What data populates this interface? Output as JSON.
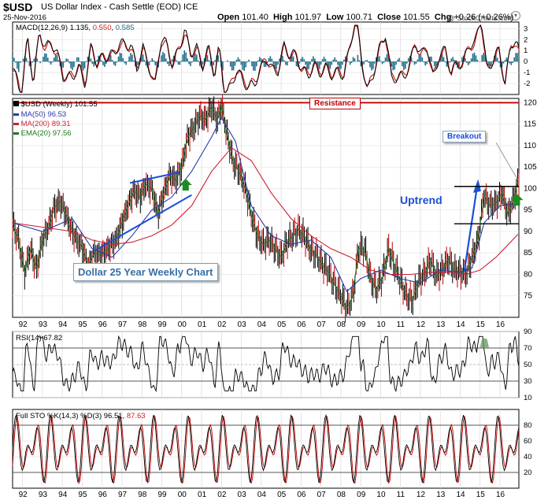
{
  "header": {
    "symbol": "$USD",
    "name": "US Dollar Index - Cash Settle (EOD) ICE",
    "date": "25-Nov-2016",
    "watermark": "@ StockCharts.com",
    "ohlc": {
      "open_label": "Open",
      "open": "101.40",
      "high_label": "High",
      "high": "101.97",
      "low_label": "Low",
      "low": "100.71",
      "close_label": "Close",
      "close": "101.55",
      "chg_label": "Chg",
      "chg": "+0.26 (+0.26%)"
    }
  },
  "colors": {
    "price": "#000000",
    "ma50": "#2a3aa8",
    "ma200": "#cc1f2f",
    "ema20": "#1c7a1c",
    "macd_line": "#000000",
    "macd_signal": "#d42020",
    "histogram": "#1f6f8b",
    "resistance": "#c00000",
    "annotation_blue": "#1a4fd6",
    "arrow_green": "#1f8a1f",
    "rsi_overbought_fill": "#6a9a6a"
  },
  "chart_data": [
    {
      "type": "line",
      "panel": "macd",
      "legend": {
        "label": "MACD(12,26,9)",
        "macd": "1.135",
        "signal": "0.550",
        "histogram": "0.585"
      },
      "ylim": [
        -3,
        3.6
      ],
      "yticks": [
        "3",
        "2",
        "1",
        "0",
        "-1",
        "-2"
      ],
      "grid": true
    },
    {
      "type": "line",
      "panel": "price",
      "legend": [
        {
          "label": "$USD (Weekly) 101.55",
          "color_key": "price"
        },
        {
          "label": "MA(50) 96.53",
          "color_key": "ma50"
        },
        {
          "label": "MA(200) 89.31",
          "color_key": "ma200"
        },
        {
          "label": "EMA(20) 97.56",
          "color_key": "ema20"
        }
      ],
      "ylim": [
        70,
        121
      ],
      "yticks": [
        "120",
        "115",
        "110",
        "105",
        "100",
        "95",
        "90",
        "85",
        "80",
        "75"
      ],
      "xticks": [
        "92",
        "93",
        "94",
        "95",
        "96",
        "97",
        "98",
        "99",
        "00",
        "01",
        "02",
        "03",
        "04",
        "05",
        "06",
        "07",
        "08",
        "09",
        "10",
        "11",
        "12",
        "13",
        "14",
        "15",
        "16"
      ],
      "x_range": [
        1991.5,
        2016.95
      ],
      "resistance_level": 120,
      "series": [
        {
          "name": "$USD (Weekly)",
          "x": [
            1991.5,
            1991.8,
            1992.1,
            1992.4,
            1992.7,
            1993.0,
            1993.3,
            1993.6,
            1993.9,
            1994.1,
            1994.4,
            1994.7,
            1995.0,
            1995.3,
            1995.6,
            1995.9,
            1996.3,
            1996.7,
            1997.0,
            1997.3,
            1997.6,
            1997.9,
            1998.2,
            1998.5,
            1998.8,
            1999.1,
            1999.4,
            1999.7,
            2000.0,
            2000.3,
            2000.6,
            2000.9,
            2001.2,
            2001.5,
            2001.8,
            2002.0,
            2002.3,
            2002.6,
            2002.9,
            2003.2,
            2003.5,
            2003.8,
            2004.1,
            2004.4,
            2004.7,
            2005.0,
            2005.3,
            2005.6,
            2005.9,
            2006.2,
            2006.5,
            2006.8,
            2007.1,
            2007.4,
            2007.7,
            2008.0,
            2008.3,
            2008.6,
            2008.9,
            2009.2,
            2009.5,
            2009.8,
            2010.1,
            2010.4,
            2010.7,
            2011.0,
            2011.3,
            2011.6,
            2011.9,
            2012.2,
            2012.5,
            2012.8,
            2013.1,
            2013.4,
            2013.7,
            2014.0,
            2014.3,
            2014.6,
            2014.9,
            2015.2,
            2015.5,
            2015.8,
            2016.1,
            2016.4,
            2016.7,
            2016.9
          ],
          "values": [
            91.5,
            88.0,
            80.5,
            86.0,
            81.0,
            88.0,
            91.0,
            95.5,
            97.0,
            95.0,
            91.0,
            88.0,
            86.5,
            81.5,
            85.0,
            84.5,
            86.0,
            88.0,
            92.0,
            96.0,
            99.5,
            98.0,
            101.0,
            100.0,
            94.0,
            99.0,
            103.0,
            102.0,
            105.0,
            112.0,
            114.0,
            117.0,
            116.0,
            119.0,
            116.0,
            119.5,
            112.0,
            106.0,
            104.0,
            100.0,
            94.0,
            89.0,
            87.0,
            88.0,
            86.0,
            84.0,
            87.5,
            89.0,
            90.5,
            88.5,
            85.5,
            84.5,
            82.0,
            80.5,
            77.5,
            75.0,
            72.0,
            75.0,
            86.0,
            86.0,
            79.0,
            76.5,
            79.5,
            86.0,
            82.0,
            78.5,
            75.0,
            74.0,
            78.5,
            80.0,
            83.5,
            79.5,
            81.0,
            83.5,
            81.0,
            80.5,
            80.0,
            84.0,
            88.0,
            98.5,
            96.0,
            96.5,
            99.0,
            94.0,
            97.5,
            101.5
          ]
        },
        {
          "name": "MA(50)",
          "x": [
            1991.5,
            1993.0,
            1994.5,
            1995.5,
            1996.5,
            1997.5,
            1998.5,
            1999.5,
            2000.5,
            2001.5,
            2002.0,
            2002.7,
            2003.5,
            2004.5,
            2005.5,
            2006.5,
            2007.5,
            2008.3,
            2009.0,
            2010.0,
            2011.0,
            2012.0,
            2013.0,
            2014.0,
            2014.6,
            2015.2,
            2016.0,
            2016.9
          ],
          "values": [
            92.0,
            90.0,
            93.0,
            86.0,
            84.0,
            89.0,
            95.0,
            98.0,
            104.0,
            112.0,
            116.5,
            111.0,
            96.0,
            89.0,
            87.0,
            88.0,
            84.0,
            76.0,
            79.0,
            81.0,
            79.0,
            78.0,
            81.0,
            80.5,
            81.5,
            92.0,
            96.0,
            96.5
          ]
        },
        {
          "name": "MA(200)",
          "x": [
            1991.5,
            1993.0,
            1994.5,
            1995.5,
            1996.5,
            1997.5,
            1998.5,
            1999.5,
            2000.5,
            2001.5,
            2002.5,
            2003.5,
            2004.5,
            2005.5,
            2006.5,
            2007.5,
            2008.5,
            2009.5,
            2010.5,
            2011.5,
            2012.5,
            2013.5,
            2014.3,
            2015.0,
            2015.8,
            2016.9
          ],
          "values": [
            92.0,
            91.0,
            90.0,
            88.0,
            87.0,
            87.5,
            89.0,
            91.5,
            96.0,
            104.0,
            109.5,
            106.5,
            99.0,
            93.0,
            89.0,
            86.0,
            84.0,
            81.0,
            80.0,
            80.0,
            80.5,
            80.5,
            80.0,
            81.0,
            84.0,
            89.3
          ]
        }
      ]
    },
    {
      "type": "line",
      "panel": "rsi",
      "legend": {
        "label": "RSI(14)",
        "value": "67.82"
      },
      "ylim": [
        10,
        90
      ],
      "yticks": [
        "90",
        "70",
        "50",
        "30",
        "10"
      ],
      "reference_lines": [
        70,
        30
      ],
      "grid": true
    },
    {
      "type": "line",
      "panel": "stochastic",
      "legend": {
        "label": "Full STO %K(14,3) %D(3)",
        "k": "96.51",
        "d": "87.63"
      },
      "ylim": [
        0,
        100
      ],
      "yticks": [
        "80",
        "60",
        "40",
        "20"
      ],
      "reference_lines": [
        80,
        20
      ],
      "grid": true
    }
  ],
  "annotations": {
    "resistance": "Resistance",
    "title_box": "Dollar 25 Year Weekly Chart",
    "uptrend": "Uptrend",
    "breakout": "Breakout"
  }
}
